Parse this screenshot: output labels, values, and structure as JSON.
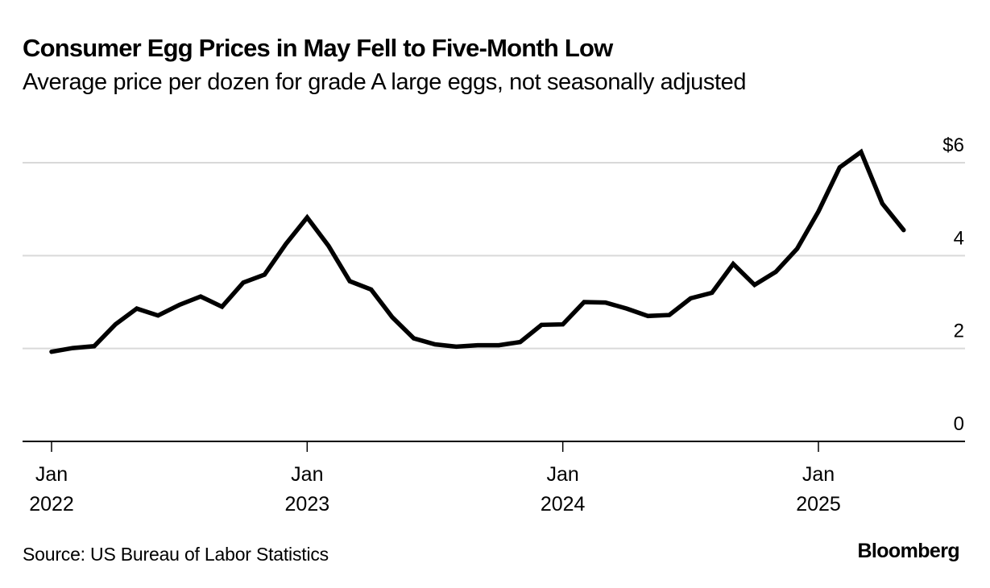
{
  "header": {
    "title": "Consumer Egg Prices in May Fell to Five-Month Low",
    "subtitle": "Average price per dozen for grade A large eggs, not seasonally adjusted"
  },
  "footer": {
    "source": "Source: US Bureau of Labor Statistics",
    "brand": "Bloomberg"
  },
  "chart_data": {
    "type": "line",
    "title": "Consumer Egg Prices in May Fell to Five-Month Low",
    "subtitle": "Average price per dozen for grade A large eggs, not seasonally adjusted",
    "xlabel": "",
    "ylabel": "",
    "ylim": [
      0,
      6
    ],
    "y_ticks": [
      {
        "value": 0,
        "label": "0"
      },
      {
        "value": 2,
        "label": "2"
      },
      {
        "value": 4,
        "label": "4"
      },
      {
        "value": 6,
        "label": "$6"
      }
    ],
    "x_ticks": [
      {
        "index": 0,
        "line1": "Jan",
        "line2": "2022"
      },
      {
        "index": 12,
        "line1": "Jan",
        "line2": "2023"
      },
      {
        "index": 24,
        "line1": "Jan",
        "line2": "2024"
      },
      {
        "index": 36,
        "line1": "Jan",
        "line2": "2025"
      }
    ],
    "x_range_months": [
      -1.3,
      43.0
    ],
    "grid": true,
    "legend": "none",
    "x": [
      "2022-01",
      "2022-02",
      "2022-03",
      "2022-04",
      "2022-05",
      "2022-06",
      "2022-07",
      "2022-08",
      "2022-09",
      "2022-10",
      "2022-11",
      "2022-12",
      "2023-01",
      "2023-02",
      "2023-03",
      "2023-04",
      "2023-05",
      "2023-06",
      "2023-07",
      "2023-08",
      "2023-09",
      "2023-10",
      "2023-11",
      "2023-12",
      "2024-01",
      "2024-02",
      "2024-03",
      "2024-04",
      "2024-05",
      "2024-06",
      "2024-07",
      "2024-08",
      "2024-09",
      "2024-10",
      "2024-11",
      "2024-12",
      "2025-01",
      "2025-02",
      "2025-03",
      "2025-04",
      "2025-05"
    ],
    "series": [
      {
        "name": "Average price per dozen, grade A large eggs (USD)",
        "color": "#000000",
        "values": [
          1.93,
          2.01,
          2.05,
          2.52,
          2.86,
          2.71,
          2.94,
          3.12,
          2.9,
          3.42,
          3.59,
          4.25,
          4.82,
          4.21,
          3.45,
          3.27,
          2.67,
          2.22,
          2.09,
          2.04,
          2.07,
          2.07,
          2.14,
          2.51,
          2.52,
          3.0,
          2.99,
          2.86,
          2.7,
          2.72,
          3.08,
          3.2,
          3.82,
          3.37,
          3.65,
          4.15,
          4.95,
          5.9,
          6.23,
          5.12,
          4.55
        ]
      }
    ],
    "source": "Source: US Bureau of Labor Statistics"
  }
}
